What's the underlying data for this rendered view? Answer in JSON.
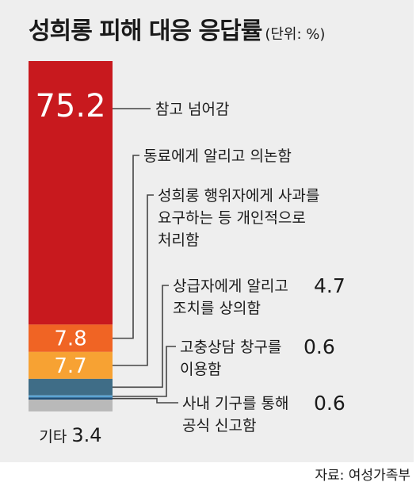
{
  "title": "성희롱 피해 대응 응답률",
  "unit": "(단위: %)",
  "source": "자료: 여성가족부",
  "chart_data": {
    "type": "bar",
    "stacked": true,
    "title": "성희롱 피해 대응 응답률",
    "unit": "%",
    "ylim": [
      0,
      100
    ],
    "series": [
      {
        "name": "참고 넘어감",
        "value": 75.2,
        "value_label": "75.2",
        "color": "#c8191e",
        "lines": [
          "참고 넘어감"
        ]
      },
      {
        "name": "동료에게 알리고 의논함",
        "value": 7.8,
        "value_label": "7.8",
        "color": "#f06424",
        "lines": [
          "동료에게 알리고 의논함"
        ]
      },
      {
        "name": "성희롱 행위자에게 사과를 요구하는 등 개인적으로 처리함",
        "value": 7.7,
        "value_label": "7.7",
        "color": "#f7a233",
        "lines": [
          "성희롱 행위자에게 사과를",
          "요구하는 등 개인적으로",
          "처리함"
        ]
      },
      {
        "name": "상급자에게 알리고 조치를 상의함",
        "value": 4.7,
        "value_label": "4.7",
        "color": "#3f6d87",
        "lines": [
          "상급자에게 알리고",
          "조치를 상의함"
        ]
      },
      {
        "name": "고충상담 창구를 이용함",
        "value": 0.6,
        "value_label": "0.6",
        "color": "#5aa3d3",
        "lines": [
          "고충상담 창구를",
          "이용함"
        ]
      },
      {
        "name": "사내 기구를 통해 공식 신고함",
        "value": 0.6,
        "value_label": "0.6",
        "color": "#1c4e78",
        "lines": [
          "사내 기구를 통해",
          "공식 신고함"
        ]
      },
      {
        "name": "기타",
        "value": 3.4,
        "value_label": "3.4",
        "color": "#b9b9b9",
        "lines": [
          "기타"
        ]
      }
    ]
  }
}
